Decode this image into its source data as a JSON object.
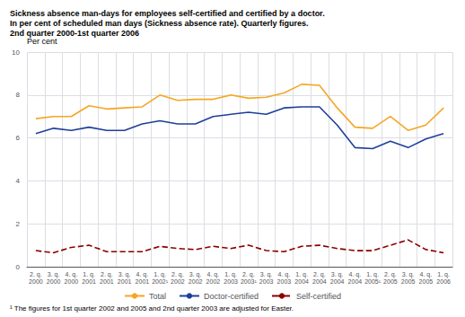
{
  "chart_data": {
    "type": "line",
    "title": "Sickness absence man-days for employees self-certified and certified by a doctor.\nIn per cent of scheduled man days (Sickness absence rate). Quarterly figures.\n2nd quarter 2000-1st quarter 2006",
    "ylabel": "Per cent",
    "footnote": "¹ The figures for 1st quarter 2002 and 2005 and 2nd quarter 2003 are adjusted for Easter.",
    "categories": [
      "2. q.\n2000",
      "3. q.\n2000",
      "4. q.\n2000",
      "1. q.\n2001",
      "2. q.\n2001",
      "3. q.\n2001",
      "4. q.\n2001",
      "1. q.\n2002¹",
      "2. q.\n2002",
      "3. q.\n2002",
      "4. q.\n2002",
      "1. q.\n2003",
      "2. q.\n2003¹",
      "3. q.\n2003",
      "4. q.\n2003",
      "1. q.\n2004",
      "2. q.\n2004",
      "3. q.\n2004",
      "4. q.\n2004",
      "1. q.\n2005¹",
      "2. q.\n2005",
      "3. q.\n2005",
      "4. q.\n2005",
      "1. q.\n2006"
    ],
    "series": [
      {
        "name": "Total",
        "color": "#F5A623",
        "line_style": "solid",
        "values": [
          6.9,
          7.0,
          7.0,
          7.5,
          7.35,
          7.4,
          7.45,
          8.0,
          7.75,
          7.8,
          7.8,
          8.0,
          7.85,
          7.9,
          8.1,
          8.5,
          8.45,
          7.4,
          6.5,
          6.45,
          7.0,
          6.35,
          6.6,
          7.4
        ]
      },
      {
        "name": "Doctor-certified",
        "color": "#1F3F99",
        "line_style": "solid",
        "values": [
          6.2,
          6.45,
          6.35,
          6.5,
          6.35,
          6.35,
          6.65,
          6.8,
          6.65,
          6.65,
          7.0,
          7.1,
          7.2,
          7.1,
          7.4,
          7.45,
          7.45,
          6.6,
          5.55,
          5.5,
          5.85,
          5.55,
          5.95,
          6.2
        ]
      },
      {
        "name": "Self-certified",
        "color": "#8B0000",
        "line_style": "dashed",
        "values": [
          0.75,
          0.65,
          0.9,
          1.0,
          0.7,
          0.7,
          0.7,
          0.95,
          0.85,
          0.8,
          0.95,
          0.85,
          1.0,
          0.75,
          0.7,
          0.95,
          1.0,
          0.85,
          0.75,
          0.75,
          1.0,
          1.25,
          0.8,
          0.65
        ]
      }
    ],
    "ylim": [
      0,
      10
    ],
    "yticks": [
      0,
      2,
      4,
      6,
      8,
      10
    ],
    "grid": true,
    "legend": "bottom"
  }
}
